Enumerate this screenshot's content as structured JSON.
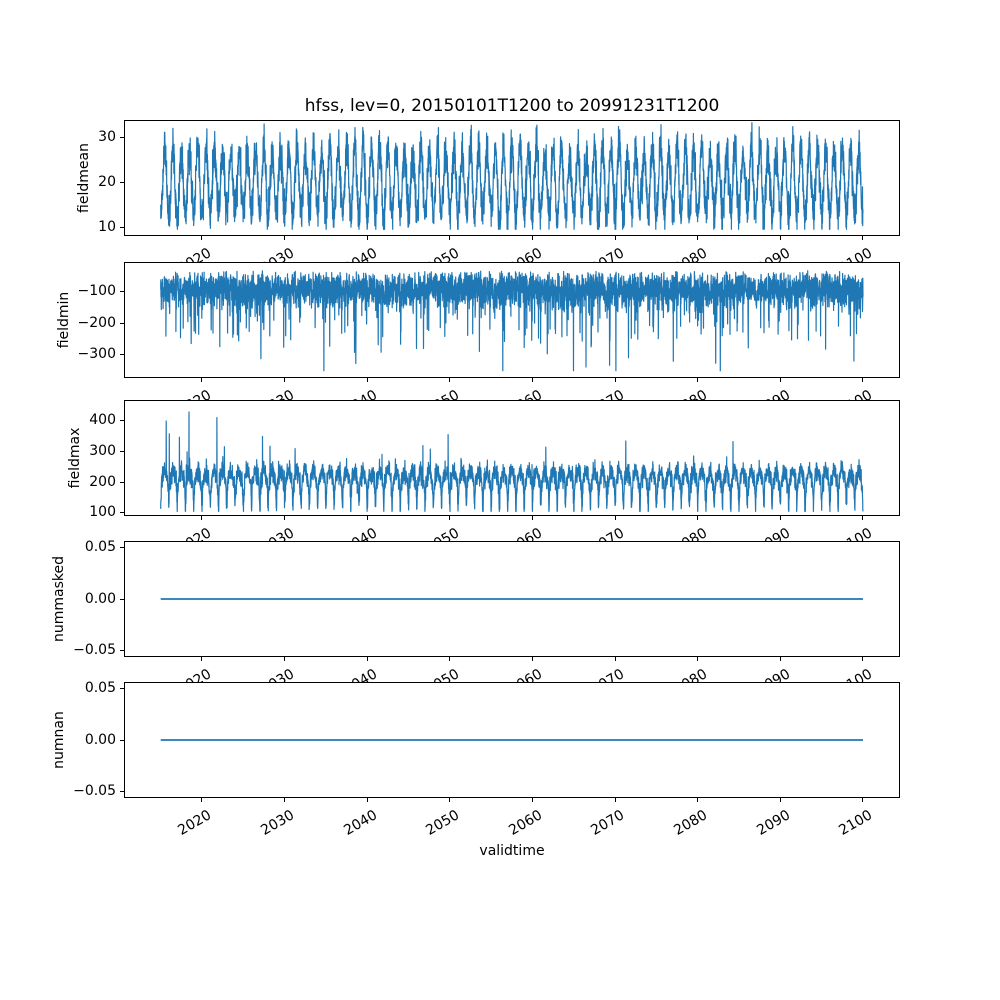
{
  "chart_data": {
    "type": "line",
    "title": "hfss, lev=0, 20150101T1200 to 20991231T1200",
    "xlabel": "validtime",
    "x_range": [
      2015.0,
      2100.0
    ],
    "x_ticks": [
      2020,
      2030,
      2040,
      2050,
      2060,
      2070,
      2080,
      2090,
      2100
    ],
    "x_tick_labels": [
      "2020",
      "2030",
      "2040",
      "2050",
      "2060",
      "2070",
      "2080",
      "2090",
      "2100"
    ],
    "x_tick_rotation_deg": 30,
    "samples_per_year": 52,
    "line_color": "#1f77b4",
    "axes_color": "#000000",
    "background": "#ffffff",
    "grid": false,
    "legend": false,
    "panels": [
      {
        "ylabel": "fieldmean",
        "y_ticks": [
          30,
          20,
          10
        ],
        "y_tick_labels": [
          "30",
          "20",
          "10"
        ],
        "ylim": [
          8.0,
          33.8
        ],
        "summary": "annual cycle, peaks ~28-33, troughs ~10-14, mean ~20",
        "signal": {
          "kind": "seasonal",
          "mean": 20,
          "amplitude": 7.2,
          "amp_jitter": 0.3,
          "phase": 0.25,
          "noise_sd": 2.2,
          "clip": [
            9.5,
            33.2
          ],
          "seed": 11
        }
      },
      {
        "ylabel": "fieldmin",
        "y_ticks": [
          -100,
          -200,
          -300
        ],
        "y_tick_labels": [
          "−100",
          "−200",
          "−300"
        ],
        "ylim": [
          -373,
          -7
        ],
        "summary": "dense band −33…−160 with frequent downward spikes to −250 and rare spikes to −350",
        "signal": {
          "kind": "band_spikes",
          "base": -33,
          "sigma": 25,
          "band": 80,
          "spike1_prob": 0.05,
          "spike1_mag": [
            40,
            150
          ],
          "spike2_prob": 0.006,
          "spike2_mag": [
            150,
            270
          ],
          "clip": [
            -350,
            -28
          ],
          "seed": 22
        }
      },
      {
        "ylabel": "fieldmax",
        "y_ticks": [
          400,
          300,
          200,
          100
        ],
        "y_tick_labels": [
          "400",
          "300",
          "200",
          "100"
        ],
        "ylim": [
          90,
          466
        ],
        "summary": "annual cycle ~115-270 with upward spikes to ~440, spikes larger and more frequent before ~2045",
        "signal": {
          "kind": "seasonal_spikes",
          "mean": 215,
          "amplitude": 22,
          "phase": 0.25,
          "noise_sd": 16,
          "trough_depth": 78,
          "trough_center": 0.0,
          "trough_width": 0.045,
          "spike_base_prob": 0.0035,
          "spike_decay_prob": 0.012,
          "spike_decay_years": 14,
          "spike_mag": [
            85,
            235
          ],
          "spike_mag_decay_years": 22,
          "clip": [
            105,
            446
          ],
          "seed": 33
        }
      },
      {
        "ylabel": "nummasked",
        "y_ticks": [
          0.05,
          0.0,
          -0.05
        ],
        "y_tick_labels": [
          "0.05",
          "0.00",
          "−0.05"
        ],
        "ylim": [
          -0.0565,
          0.0565
        ],
        "summary": "constant 0 for whole period",
        "signal": {
          "kind": "constant",
          "value": 0
        }
      },
      {
        "ylabel": "numnan",
        "y_ticks": [
          0.05,
          0.0,
          -0.05
        ],
        "y_tick_labels": [
          "0.05",
          "0.00",
          "−0.05"
        ],
        "ylim": [
          -0.0565,
          0.0565
        ],
        "summary": "constant 0 for whole period",
        "signal": {
          "kind": "constant",
          "value": 0
        }
      }
    ]
  }
}
